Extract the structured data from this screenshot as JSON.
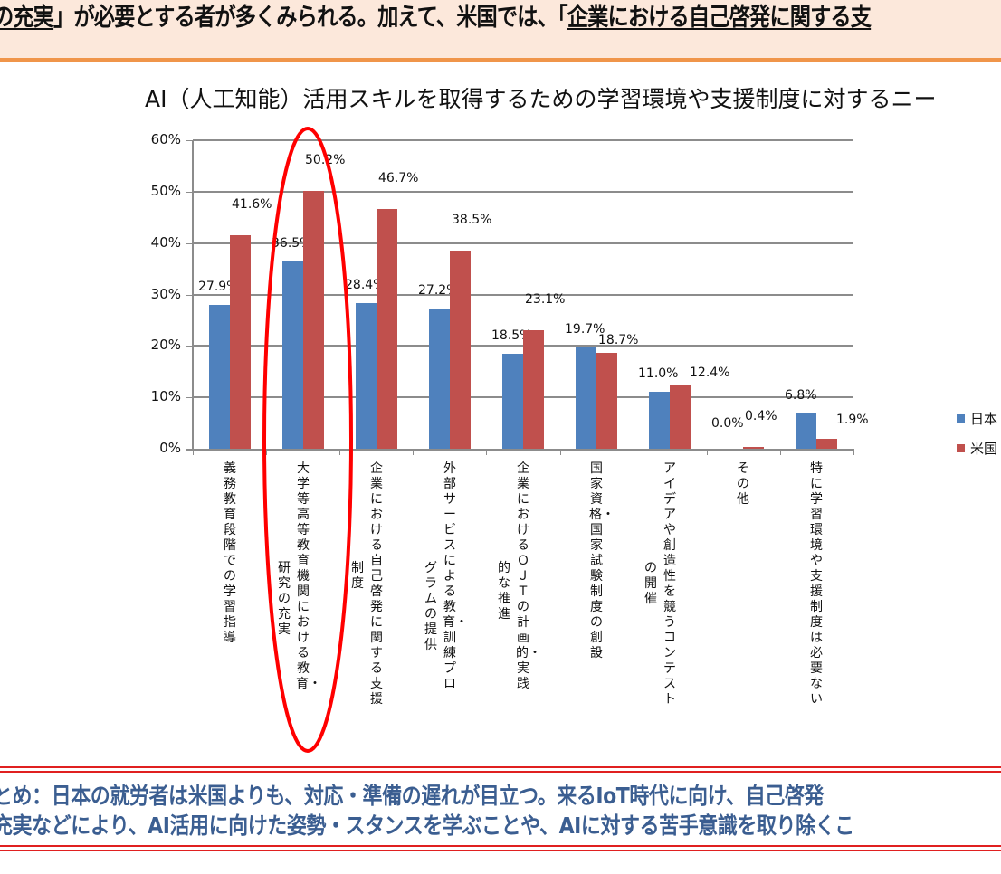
{
  "banner": {
    "text_pre": "の充実",
    "text_mid": "」が必要とする者が多くみられる。加えて、米国では、「",
    "text_underlined": "企業における自己啓発に関する支",
    "colors": {
      "background": "#fce8db",
      "rule": "#f0954a"
    }
  },
  "chart_data": {
    "type": "bar",
    "title": "AI（人工知能）活用スキルを取得するための学習環境や支援制度に対するニー",
    "xlabel": "",
    "ylabel": "",
    "ylim": [
      0,
      60
    ],
    "yticks": [
      "0%",
      "10%",
      "20%",
      "30%",
      "40%",
      "50%",
      "60%"
    ],
    "grid": true,
    "legend_position": "right",
    "categories": [
      "義務教育段階での学習指導",
      "大学等高等教育機関における教育・研究の充実",
      "企業における自己啓発に関する支援制度",
      "外部サービスによる教育・訓練プログラムの提供",
      "企業におけるＯＪＴの計画的・実践的な推進",
      "国家資格・国家試験制度の創設",
      "アイデアや創造性を競うコンテストの開催",
      "その他",
      "特に学習環境や支援制度は必要ない"
    ],
    "series": [
      {
        "name": "日本",
        "color": "#4f81bd",
        "values": [
          27.9,
          36.5,
          28.4,
          27.2,
          18.5,
          19.7,
          11.0,
          0.0,
          6.8
        ],
        "labels": [
          "27.9%",
          "36.5%",
          "28.4%",
          "27.2%",
          "18.5%",
          "19.7%",
          "11.0%",
          "0.0%",
          "6.8%"
        ]
      },
      {
        "name": "米国",
        "color": "#c0504d",
        "values": [
          41.6,
          50.2,
          46.7,
          38.5,
          23.1,
          18.7,
          12.4,
          0.4,
          1.9
        ],
        "labels": [
          "41.6%",
          "50.2%",
          "46.7%",
          "38.5%",
          "23.1%",
          "18.7%",
          "12.4%",
          "0.4%",
          "1.9%"
        ]
      }
    ],
    "annotations": [
      {
        "type": "ellipse",
        "color": "#ff0000",
        "target_category": "大学等高等教育機関における教育・研究の充実"
      }
    ]
  },
  "xcat_columns": [
    {
      "main": "義務教育段階での学習指導",
      "second": ""
    },
    {
      "main": "大学等高等教育機関における教育・",
      "second": "研究の充実"
    },
    {
      "main": "企業における自己啓発に関する支援",
      "second": "制度"
    },
    {
      "main": "外部サービスによる教育・訓練プロ",
      "second": "グラムの提供"
    },
    {
      "main": "企業におけるＯＪＴの計画的・実践",
      "second": "的な推進"
    },
    {
      "main": "国家資格・国家試験制度の創設",
      "second": ""
    },
    {
      "main": "アイデアや創造性を競うコンテスト",
      "second": "の開催"
    },
    {
      "main": "その他",
      "second": ""
    },
    {
      "main": "特に学習環境や支援制度は必要ない",
      "second": ""
    }
  ],
  "legend": [
    {
      "label": "日本",
      "color": "#4f81bd"
    },
    {
      "label": "米国",
      "color": "#c0504d"
    }
  ],
  "summary": {
    "line1": "とめ：日本の就労者は米国よりも、対応・準備の遅れが目立つ。来るIoT時代に向け、自己啓発",
    "line2": "充実などにより、AI活用に向けた姿勢・スタンスを学ぶことや、AIに対する苦手意識を取り除くこ",
    "colors": {
      "text": "#3b5e91",
      "border": "#e02020"
    }
  }
}
